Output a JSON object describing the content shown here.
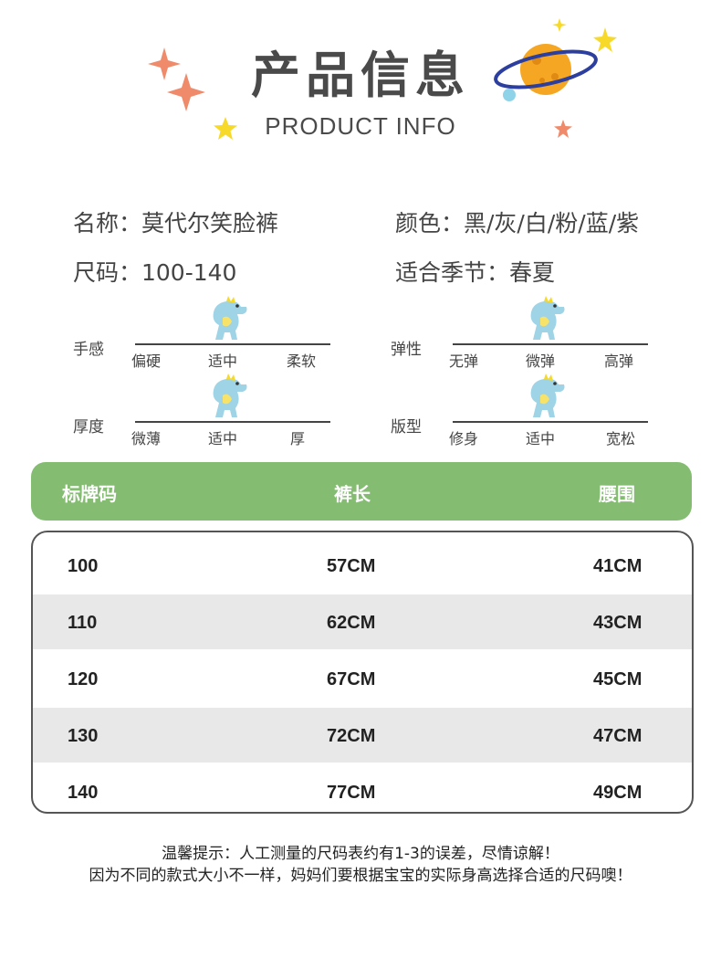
{
  "header": {
    "title_cn": "产品信息",
    "title_en": "PRODUCT INFO"
  },
  "info": {
    "name": "名称：莫代尔笑脸裤",
    "color": "颜色：黑/灰/白/粉/蓝/紫",
    "size": "尺码：100-140",
    "season": "适合季节：春夏"
  },
  "attributes": [
    {
      "label": "手感",
      "options": [
        "偏硬",
        "适中",
        "柔软"
      ],
      "selected_index": 1
    },
    {
      "label": "弹性",
      "options": [
        "无弹",
        "微弹",
        "高弹"
      ],
      "selected_index": 1
    },
    {
      "label": "厚度",
      "options": [
        "微薄",
        "适中",
        "厚"
      ],
      "selected_index": 1
    },
    {
      "label": "版型",
      "options": [
        "修身",
        "适中",
        "宽松"
      ],
      "selected_index": 1
    }
  ],
  "size_table": {
    "headers": [
      "标牌码",
      "裤长",
      "腰围"
    ],
    "rows": [
      [
        "100",
        "57CM",
        "41CM"
      ],
      [
        "110",
        "62CM",
        "43CM"
      ],
      [
        "120",
        "67CM",
        "45CM"
      ],
      [
        "130",
        "72CM",
        "47CM"
      ],
      [
        "140",
        "77CM",
        "49CM"
      ]
    ]
  },
  "notes": {
    "line1": "温馨提示：人工测量的尺码表约有1-3的误差，尽情谅解！",
    "line2": "因为不同的款式大小不一样，妈妈们要根据宝宝的实际身高选择合适的尺码噢！"
  },
  "colors": {
    "header_green": "#84bd72",
    "star_orange": "#ef8a6a",
    "star_yellow": "#f7d92a",
    "planet_orange": "#f5a623",
    "ring_blue": "#2c3e9e",
    "dino_blue": "#9fd3e6"
  }
}
